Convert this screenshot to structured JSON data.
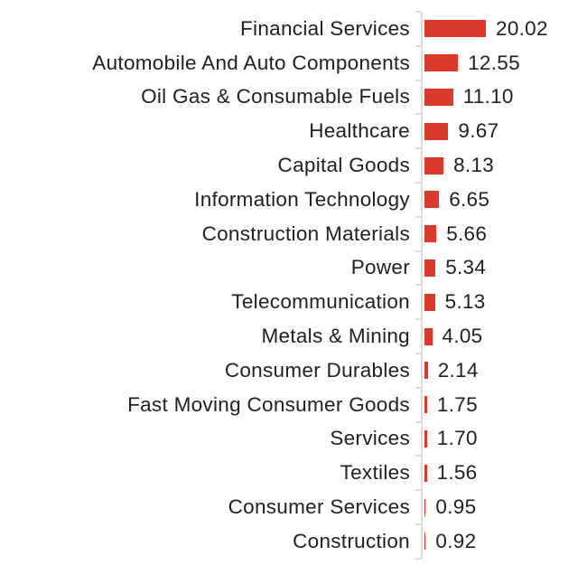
{
  "chart_data": {
    "type": "bar",
    "orientation": "horizontal",
    "title": "",
    "xlabel": "",
    "ylabel": "",
    "xlim": [
      0,
      20.02
    ],
    "grid": false,
    "legend": false,
    "categories": [
      "Financial Services",
      "Automobile And Auto Components",
      "Oil Gas & Consumable Fuels",
      "Healthcare",
      "Capital Goods",
      "Information Technology",
      "Construction Materials",
      "Power",
      "Telecommunication",
      "Metals & Mining",
      "Consumer Durables",
      "Fast Moving Consumer Goods",
      "Services",
      "Textiles",
      "Consumer Services",
      "Construction"
    ],
    "values": [
      20.02,
      12.55,
      11.1,
      9.67,
      8.13,
      6.65,
      5.66,
      5.34,
      5.13,
      4.05,
      2.14,
      1.75,
      1.7,
      1.56,
      0.95,
      0.92
    ],
    "value_labels": [
      "20.02",
      "12.55",
      "11.10",
      "9.67",
      "8.13",
      "6.65",
      "5.66",
      "5.34",
      "5.13",
      "4.05",
      "2.14",
      "1.75",
      "1.70",
      "1.56",
      "0.95",
      "0.92"
    ],
    "colors": {
      "bar": "#DB3A2B",
      "axis": "#DCDCDC",
      "text": "#212121"
    }
  }
}
